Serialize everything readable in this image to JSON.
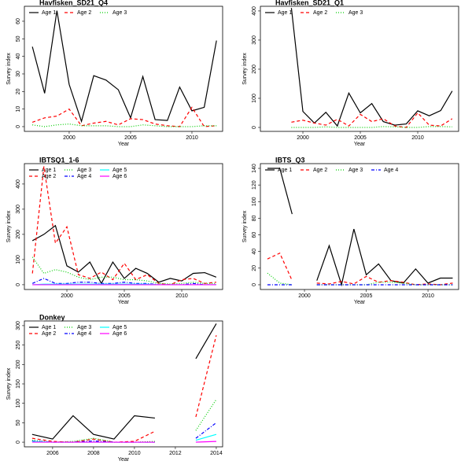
{
  "chart_data": [
    {
      "type": "line",
      "title": "Havfisken_SD21_Q4",
      "x_label": "Year",
      "y_label": "Survey index",
      "x": [
        1997,
        1998,
        1999,
        2000,
        2001,
        2002,
        2003,
        2004,
        2005,
        2006,
        2007,
        2008,
        2009,
        2010,
        2011,
        2012
      ],
      "xlim": [
        1996.35,
        2012.5
      ],
      "xticks": [
        2000,
        2005,
        2010
      ],
      "ylim": [
        -2.7,
        68.5
      ],
      "yticks": [
        0,
        10,
        20,
        30,
        40,
        50,
        60
      ],
      "series": [
        {
          "name": "Age 1",
          "color": "#000000",
          "dash": "solid",
          "values": [
            45.5,
            19,
            66,
            24,
            3,
            29,
            26.5,
            21,
            5,
            28.5,
            4,
            3.5,
            22.5,
            9,
            11,
            49
          ]
        },
        {
          "name": "Age 2",
          "color": "#ff0000",
          "dash": "dashed",
          "values": [
            2.5,
            5,
            6,
            10,
            0.5,
            2,
            3,
            1,
            4.5,
            4,
            1.5,
            0.5,
            0,
            11,
            0,
            0.5
          ]
        },
        {
          "name": "Age 3",
          "color": "#00cd00",
          "dash": "dotted",
          "values": [
            1,
            0,
            1,
            1.5,
            0.5,
            0.5,
            0.5,
            0,
            0,
            1,
            0.5,
            0,
            0,
            0,
            0.5,
            0.5
          ]
        }
      ]
    },
    {
      "type": "line",
      "title": "Havfisken_SD21_Q1",
      "x_label": "Year",
      "y_label": "Survey index",
      "x": [
        1999,
        2000,
        2001,
        2002,
        2003,
        2004,
        2005,
        2006,
        2007,
        2008,
        2009,
        2010,
        2011,
        2012,
        2013
      ],
      "xlim": [
        1996.3,
        2013.56
      ],
      "xticks": [
        2000,
        2005,
        2010
      ],
      "ylim": [
        -13.5,
        416
      ],
      "yticks": [
        0,
        100,
        200,
        300,
        400
      ],
      "series": [
        {
          "name": "Age 1",
          "color": "#000000",
          "dash": "solid",
          "values": [
            410,
            55,
            15,
            52,
            5,
            118,
            50,
            82,
            20,
            8,
            12,
            57,
            40,
            58,
            125
          ]
        },
        {
          "name": "Age 2",
          "color": "#ff0000",
          "dash": "dashed",
          "values": [
            18,
            25,
            15,
            8,
            28,
            5,
            45,
            20,
            30,
            5,
            0,
            50,
            8,
            5,
            30
          ]
        },
        {
          "name": "Age 3",
          "color": "#00cd00",
          "dash": "dotted",
          "values": [
            0,
            0,
            0,
            2,
            0,
            0,
            0,
            0,
            3,
            2,
            0,
            0,
            3,
            3,
            2
          ]
        }
      ]
    },
    {
      "type": "line",
      "title": "IBTSQ1_1-6",
      "x_label": "Year",
      "y_label": "Survey index",
      "x": [
        1997,
        1998,
        1999,
        2000,
        2001,
        2002,
        2003,
        2004,
        2005,
        2006,
        2007,
        2008,
        2009,
        2010,
        2011,
        2012,
        2013
      ],
      "xlim": [
        1996.3,
        2013.56
      ],
      "xticks": [
        2000,
        2005,
        2010
      ],
      "ylim": [
        -19,
        481
      ],
      "yticks": [
        0,
        100,
        200,
        300,
        400
      ],
      "series": [
        {
          "name": "Age 1",
          "color": "#000000",
          "dash": "solid",
          "values": [
            175,
            200,
            235,
            75,
            50,
            90,
            5,
            90,
            25,
            65,
            45,
            10,
            25,
            15,
            45,
            48,
            30
          ]
        },
        {
          "name": "Age 2",
          "color": "#ff0000",
          "dash": "dashed",
          "values": [
            45,
            470,
            165,
            230,
            40,
            25,
            50,
            20,
            85,
            20,
            40,
            5,
            0,
            20,
            25,
            5,
            10
          ]
        },
        {
          "name": "Age 3",
          "color": "#00cd00",
          "dash": "dotted",
          "values": [
            110,
            45,
            60,
            50,
            30,
            20,
            30,
            30,
            20,
            20,
            15,
            5,
            3,
            5,
            10,
            5,
            5
          ]
        },
        {
          "name": "Age 4",
          "color": "#0000ff",
          "dash": "dashdot",
          "values": [
            5,
            25,
            5,
            5,
            10,
            10,
            5,
            5,
            10,
            5,
            5,
            0,
            0,
            0,
            5,
            0,
            0
          ]
        },
        {
          "name": "Age 5",
          "color": "#00ffff",
          "dash": "solid",
          "values": [
            0,
            2,
            2,
            2,
            2,
            2,
            2,
            2,
            2,
            2,
            2,
            0,
            0,
            0,
            0,
            0,
            0
          ]
        },
        {
          "name": "Age 6",
          "color": "#ff00ff",
          "dash": "solid",
          "values": [
            0,
            0,
            0,
            0,
            0,
            0,
            0,
            0,
            0,
            0,
            0,
            0,
            0,
            0,
            0,
            0,
            0
          ]
        }
      ]
    },
    {
      "type": "line",
      "title": "IBTS_Q3",
      "x_label": "Year",
      "y_label": "Survey index",
      "x": [
        1997,
        1998,
        1999,
        2000,
        2001,
        2002,
        2003,
        2004,
        2005,
        2006,
        2007,
        2008,
        2009,
        2010,
        2011,
        2012
      ],
      "xlim": [
        1996.43,
        2012.48
      ],
      "xticks": [
        2000,
        2005,
        2010
      ],
      "ylim": [
        -5.7,
        145.7
      ],
      "yticks": [
        0,
        20,
        40,
        60,
        80,
        100,
        120,
        140
      ],
      "series": [
        {
          "name": "Age 1",
          "color": "#000000",
          "dash": "solid",
          "values": [
            140,
            140,
            85,
            null,
            5,
            47,
            0,
            67,
            12,
            25,
            5,
            2,
            19,
            2,
            8,
            8
          ]
        },
        {
          "name": "Age 2",
          "color": "#ff0000",
          "dash": "dashed",
          "values": [
            31,
            38,
            5,
            null,
            2,
            1,
            4,
            1,
            10,
            3,
            5,
            3,
            0,
            1,
            0,
            2
          ]
        },
        {
          "name": "Age 3",
          "color": "#00cd00",
          "dash": "dotted",
          "values": [
            14,
            2,
            0,
            null,
            0,
            0,
            0,
            0,
            0,
            3,
            3,
            2,
            0,
            0,
            0,
            0
          ]
        },
        {
          "name": "Age 4",
          "color": "#0000ff",
          "dash": "dashdot",
          "values": [
            0,
            0,
            0,
            null,
            0,
            0,
            0,
            0,
            0,
            0,
            0,
            0,
            0,
            0,
            0,
            0
          ]
        }
      ]
    },
    {
      "type": "line",
      "title": "Donkey",
      "x_label": "Year",
      "y_label": "Survey index",
      "x": [
        2005,
        2006,
        2007,
        2008,
        2009,
        2010,
        2011,
        2012,
        2013,
        2014
      ],
      "xlim": [
        2004.62,
        2014.31
      ],
      "xticks": [
        2006,
        2008,
        2010,
        2012,
        2014
      ],
      "ylim": [
        -12,
        312
      ],
      "yticks": [
        0,
        50,
        100,
        150,
        200,
        250,
        300
      ],
      "series": [
        {
          "name": "Age 1",
          "color": "#000000",
          "dash": "solid",
          "values": [
            20,
            8,
            68,
            20,
            8,
            68,
            62,
            null,
            215,
            305
          ]
        },
        {
          "name": "Age 2",
          "color": "#ff0000",
          "dash": "dashed",
          "values": [
            10,
            2,
            0,
            8,
            0,
            2,
            28,
            null,
            65,
            275
          ]
        },
        {
          "name": "Age 3",
          "color": "#00cd00",
          "dash": "dotted",
          "values": [
            5,
            0,
            2,
            10,
            0,
            0,
            2,
            null,
            30,
            110
          ]
        },
        {
          "name": "Age 4",
          "color": "#0000ff",
          "dash": "dashdot",
          "values": [
            3,
            0,
            0,
            3,
            0,
            0,
            0,
            null,
            10,
            50
          ]
        },
        {
          "name": "Age 5",
          "color": "#00ffff",
          "dash": "solid",
          "values": [
            2,
            0,
            0,
            0,
            0,
            0,
            0,
            null,
            5,
            20
          ]
        },
        {
          "name": "Age 6",
          "color": "#ff00ff",
          "dash": "solid",
          "values": [
            0,
            0,
            0,
            0,
            0,
            0,
            0,
            null,
            0,
            2
          ]
        }
      ]
    }
  ]
}
